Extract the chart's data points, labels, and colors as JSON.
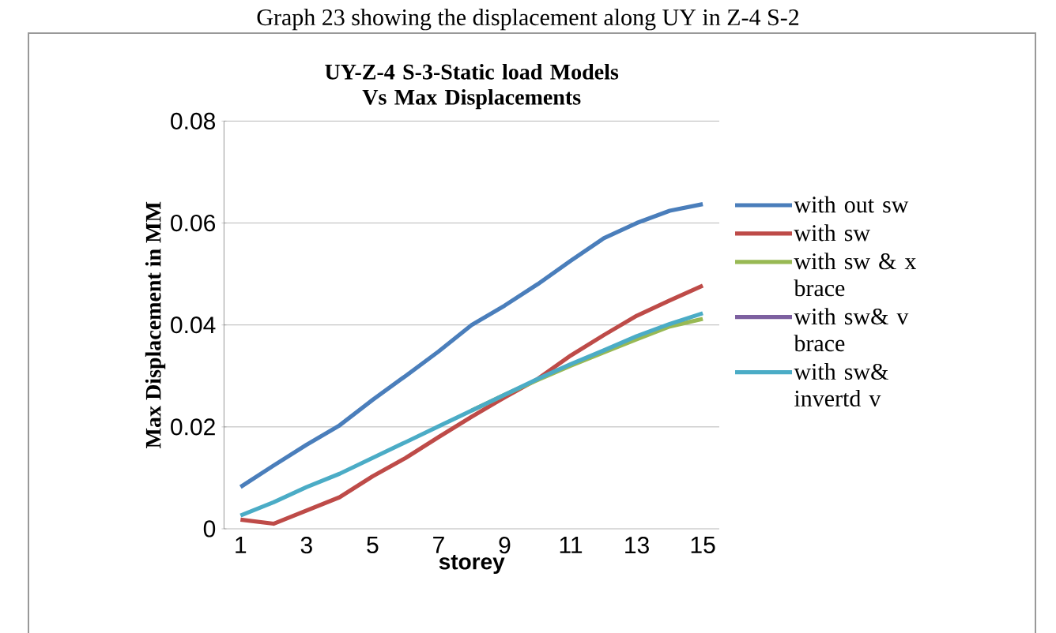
{
  "chart_data": {
    "type": "line",
    "title": "UY-Z-4  S-3-Static load Models Vs Max Displacements",
    "xlabel": "storey",
    "ylabel": "Max Displacement in MM",
    "annotations": [
      "Graph 23 showing the displacement along UY in Z-4 S-2"
    ],
    "categories": [
      "1",
      null,
      "3",
      null,
      "5",
      null,
      "7",
      null,
      "9",
      null,
      "11",
      null,
      "13",
      null,
      "15"
    ],
    "ylim": [
      0,
      0.08
    ],
    "yticks": [
      0,
      0.02,
      0.04,
      0.06,
      0.08
    ],
    "grid": "y",
    "legend": "right",
    "marker": "none",
    "line_style": "solid",
    "series": [
      {
        "name": "with out sw",
        "color": "#4a7ebb",
        "values": [
          0.0082,
          0.0124,
          0.0165,
          0.0203,
          0.0253,
          0.03,
          0.0348,
          0.04,
          0.0438,
          0.048,
          0.0526,
          0.057,
          0.06,
          0.0624,
          0.0637
        ]
      },
      {
        "name": "with sw",
        "color": "#be4b48",
        "values": [
          0.0018,
          0.001,
          0.0036,
          0.0062,
          0.0103,
          0.0139,
          0.018,
          0.022,
          0.0258,
          0.0294,
          0.034,
          0.038,
          0.0418,
          0.0448,
          0.0477
        ]
      },
      {
        "name": "with sw & x brace",
        "color": "#98b954",
        "values": [
          null,
          null,
          null,
          null,
          null,
          null,
          null,
          0.0232,
          0.0263,
          0.0292,
          0.032,
          0.0346,
          0.0372,
          0.0397,
          0.0412
        ]
      },
      {
        "name": "with sw& v brace",
        "color": "#7d60a0",
        "values": [
          null,
          null,
          null,
          null,
          null,
          null,
          null,
          null,
          null,
          null,
          null,
          null,
          null,
          null,
          null
        ]
      },
      {
        "name": "with sw& invertd v",
        "color": "#4bacc6",
        "values": [
          0.0026,
          0.0052,
          0.0082,
          0.0108,
          0.0139,
          0.017,
          0.0201,
          0.0232,
          0.0263,
          0.0294,
          0.0323,
          0.035,
          0.0378,
          0.0402,
          0.0423
        ]
      }
    ]
  }
}
